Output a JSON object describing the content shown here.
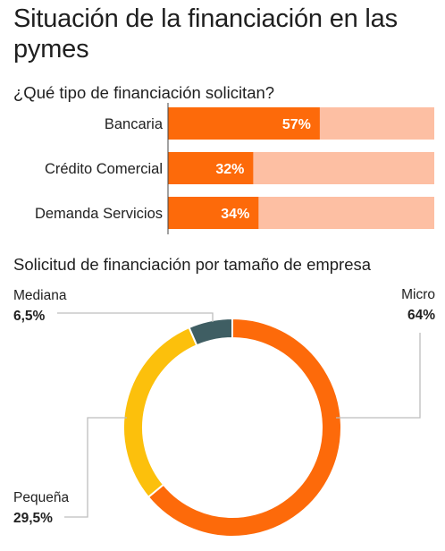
{
  "title": "Situación de la financiación en las pymes",
  "colors": {
    "orange": "#fd6a0a",
    "bar_track": "#fdbfa3",
    "yellow": "#fcc00c",
    "slate": "#3f5e63",
    "leader": "#bdbdbd"
  },
  "chart_data": [
    {
      "type": "bar",
      "orientation": "horizontal",
      "title": "¿Qué tipo de financiación solicitan?",
      "categories": [
        "Bancaria",
        "Crédito Comercial",
        "Demanda Servicios"
      ],
      "values": [
        57,
        32,
        34
      ],
      "value_labels": [
        "57%",
        "32%",
        "34%"
      ],
      "xlim": [
        0,
        100
      ]
    },
    {
      "type": "pie",
      "style": "donut",
      "title": "Solicitud de financiación por tamaño de empresa",
      "slices": [
        {
          "label": "Micro",
          "value": 64,
          "value_label": "64%",
          "color": "#fd6a0a"
        },
        {
          "label": "Pequeña",
          "value": 29.5,
          "value_label": "29,5%",
          "color": "#fcc00c"
        },
        {
          "label": "Mediana",
          "value": 6.5,
          "value_label": "6,5%",
          "color": "#3f5e63"
        }
      ]
    }
  ]
}
